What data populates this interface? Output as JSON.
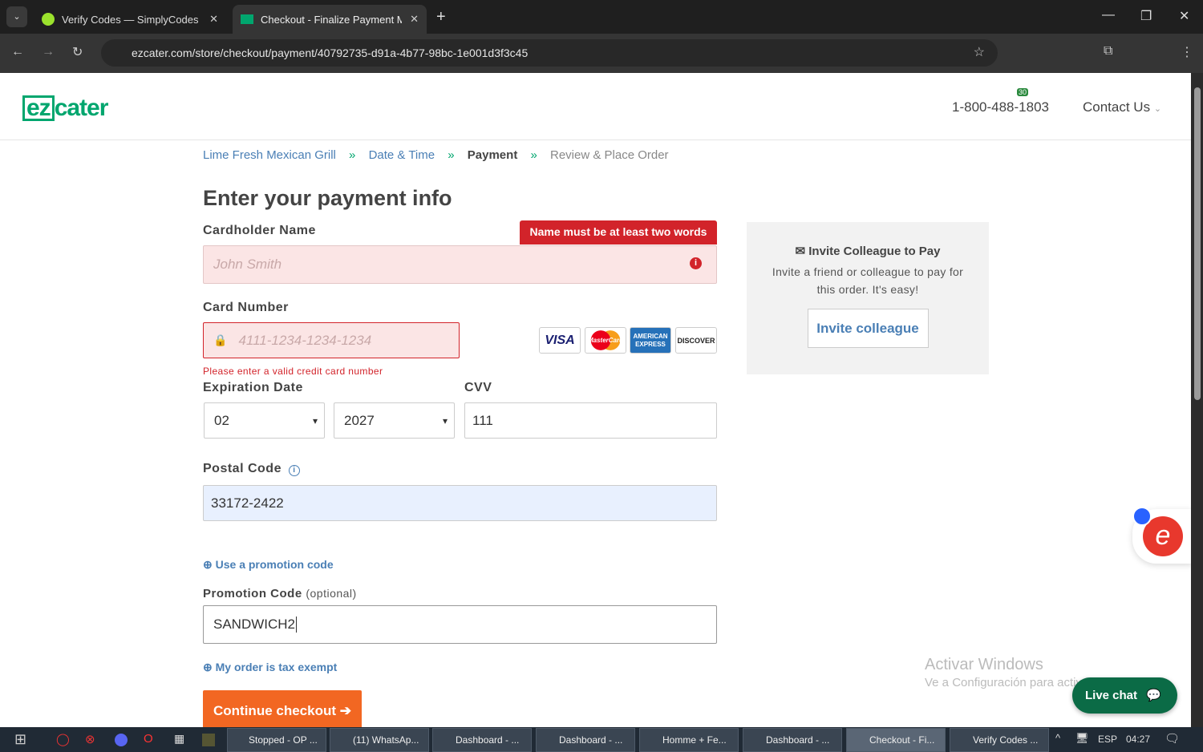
{
  "browser": {
    "tabs": [
      {
        "title": "Verify Codes — SimplyCodes"
      },
      {
        "title": "Checkout - Finalize Payment Me"
      }
    ],
    "url": "ezcater.com/store/checkout/payment/40792735-d91a-4b77-98bc-1e001d3f3c45",
    "extension_badge": "30"
  },
  "header": {
    "logo_ez": "ez",
    "logo_cater": "cater",
    "phone": "1-800-488-1803",
    "contact": "Contact Us"
  },
  "breadcrumb": [
    {
      "label": "Lime Fresh Mexican Grill"
    },
    {
      "label": "Date & Time"
    },
    {
      "label": "Payment"
    },
    {
      "label": "Review & Place Order"
    }
  ],
  "separator": "»",
  "form": {
    "title": "Enter your payment info",
    "cardholder": {
      "label": "Cardholder Name",
      "placeholder": "John Smith",
      "error": "Name must be at least two words"
    },
    "card_number": {
      "label": "Card Number",
      "placeholder": "4111-1234-1234-1234",
      "error": "Please enter a valid credit card number"
    },
    "cards": [
      "VISA",
      "MasterCard",
      "AMERICAN EXPRESS",
      "DISCOVER"
    ],
    "expiration": {
      "label": "Expiration Date",
      "month": "02",
      "year": "2027"
    },
    "cvv": {
      "label": "CVV",
      "value": "111"
    },
    "postal": {
      "label": "Postal Code",
      "value": "33172-2422"
    },
    "promo_link": "Use a promotion code",
    "promo": {
      "label": "Promotion Code",
      "optional": "(optional)",
      "value": "SANDWICH2"
    },
    "tax_exempt": "My order is tax exempt",
    "continue": "Continue checkout"
  },
  "invite": {
    "title": "Invite Colleague to Pay",
    "text": "Invite a friend or colleague to pay for this order. It's easy!",
    "button": "Invite colleague"
  },
  "watermark": {
    "title": "Activar Windows",
    "text": "Ve a Configuración para activar Windows."
  },
  "live_chat": "Live chat",
  "taskbar": {
    "items": [
      "Stopped - OP ...",
      "(11) WhatsAp...",
      "Dashboard - ...",
      "Dashboard - ...",
      "Homme + Fe...",
      "Dashboard - ...",
      "Checkout - Fi...",
      "Verify Codes ..."
    ],
    "lang": "ESP",
    "time": "04:27"
  },
  "colors": {
    "brand": "#00a66e",
    "link": "#4a7fb5",
    "error": "#d2232a",
    "cta": "#f26722",
    "chat": "#0b6b46"
  }
}
